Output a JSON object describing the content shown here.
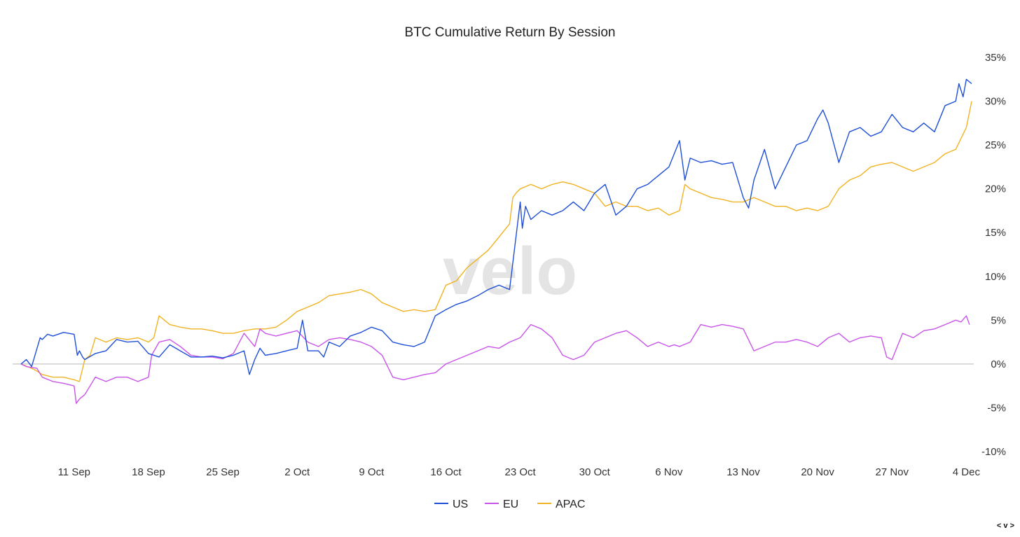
{
  "chart_data": {
    "type": "line",
    "title": "BTC Cumulative Return By Session",
    "xlabel": "",
    "ylabel": "",
    "y_axis_position": "right",
    "ylim": [
      -10,
      35
    ],
    "y_ticks": [
      35,
      30,
      25,
      20,
      15,
      10,
      5,
      0,
      -5,
      -10
    ],
    "y_tick_labels": [
      "35%",
      "30%",
      "25%",
      "20%",
      "15%",
      "10%",
      "5%",
      "0%",
      "-5%",
      "-10%"
    ],
    "x_ticks": [
      0,
      7,
      14,
      21,
      28,
      35,
      42,
      49,
      56,
      63,
      70,
      77,
      84
    ],
    "x_tick_labels": [
      "11 Sep",
      "18 Sep",
      "25 Sep",
      "2 Oct",
      "9 Oct",
      "16 Oct",
      "23 Oct",
      "30 Oct",
      "6 Nov",
      "13 Nov",
      "20 Nov",
      "27 Nov",
      "4 Dec"
    ],
    "xlim": [
      -5,
      84.7
    ],
    "zero_line": true,
    "grid": false,
    "legend_position": "bottom-center",
    "watermark": "velo",
    "series": [
      {
        "name": "US",
        "color": "#1f4fd6",
        "x": [
          -5,
          -4.5,
          -4,
          -3.2,
          -3,
          -2.5,
          -2,
          -1,
          0,
          0.3,
          0.5,
          0.8,
          1,
          2,
          3,
          4,
          5,
          6,
          7,
          8,
          9,
          10,
          11,
          12,
          13,
          14,
          15,
          16,
          16.5,
          17,
          17.5,
          18,
          19,
          20,
          21,
          21.5,
          22,
          23,
          23.5,
          24,
          25,
          26,
          27,
          28,
          29,
          30,
          31,
          32,
          33,
          34,
          35,
          36,
          37,
          38,
          39,
          40,
          41,
          42,
          42.2,
          42.5,
          43,
          44,
          45,
          46,
          47,
          48,
          49,
          50,
          51,
          52,
          53,
          54,
          55,
          56,
          57,
          57.5,
          58,
          59,
          60,
          61,
          62,
          63,
          63.5,
          64,
          65,
          66,
          67,
          68,
          69,
          70,
          70.5,
          71,
          72,
          73,
          74,
          75,
          76,
          77,
          78,
          79,
          80,
          81,
          82,
          83,
          83.3,
          83.7,
          84,
          84.5
        ],
        "values": [
          0,
          0.5,
          -0.3,
          3,
          2.8,
          3.4,
          3.2,
          3.6,
          3.4,
          1,
          1.5,
          0.8,
          0.5,
          1.2,
          1.5,
          2.8,
          2.5,
          2.6,
          1.2,
          0.8,
          2.2,
          1.5,
          0.8,
          0.8,
          0.9,
          0.7,
          1,
          1.5,
          -1.2,
          0.5,
          1.8,
          1,
          1.2,
          1.5,
          1.8,
          5,
          1.5,
          1.5,
          0.8,
          2.5,
          2.0,
          3.2,
          3.6,
          4.2,
          3.8,
          2.5,
          2.2,
          2.0,
          2.5,
          5.5,
          6.2,
          6.8,
          7.2,
          7.8,
          8.5,
          9.0,
          8.5,
          18.5,
          15.5,
          18.0,
          16.5,
          17.5,
          17.0,
          17.5,
          18.5,
          17.5,
          19.5,
          20.5,
          17.0,
          18.0,
          20.0,
          20.5,
          21.5,
          22.5,
          25.5,
          21.0,
          23.5,
          23.0,
          23.2,
          22.8,
          23.0,
          19.0,
          17.8,
          21.0,
          24.5,
          20.0,
          22.5,
          25.0,
          25.5,
          28.0,
          29.0,
          27.5,
          23.0,
          26.5,
          27.0,
          26.0,
          26.5,
          28.5,
          27.0,
          26.5,
          27.5,
          26.5,
          29.5,
          30.0,
          32.0,
          30.5,
          32.5,
          32.0
        ],
        "legend_label": "US"
      },
      {
        "name": "EU",
        "color": "#c855e8",
        "x": [
          -5,
          -4.5,
          -3.5,
          -3,
          -2,
          -1,
          0,
          0.2,
          0.5,
          1,
          1.5,
          2,
          3,
          4,
          5,
          6,
          7,
          7.3,
          8,
          9,
          10,
          11,
          12,
          13,
          14,
          15,
          16,
          17,
          17.5,
          18,
          19,
          20,
          21,
          22,
          23,
          24,
          25,
          26,
          27,
          28,
          29,
          30,
          31,
          32,
          33,
          34,
          35,
          36,
          37,
          38,
          39,
          40,
          41,
          42,
          43,
          44,
          45,
          46,
          47,
          48,
          49,
          50,
          51,
          52,
          53,
          54,
          55,
          56,
          56.5,
          57,
          58,
          59,
          60,
          61,
          62,
          63,
          64,
          65,
          66,
          67,
          68,
          69,
          70,
          71,
          72,
          73,
          74,
          75,
          76,
          76.5,
          77,
          78,
          79,
          80,
          81,
          82,
          83,
          83.5,
          84,
          84.3
        ],
        "values": [
          0,
          -0.3,
          -0.5,
          -1.5,
          -2.0,
          -2.2,
          -2.5,
          -4.5,
          -4.0,
          -3.5,
          -2.5,
          -1.5,
          -2.0,
          -1.5,
          -1.5,
          -2.0,
          -1.5,
          1.0,
          2.5,
          2.8,
          2.0,
          1.0,
          0.8,
          0.8,
          0.6,
          1.2,
          3.5,
          2.0,
          4.0,
          3.5,
          3.2,
          3.5,
          3.8,
          2.5,
          2.0,
          2.8,
          3.0,
          2.8,
          2.5,
          2.0,
          1.0,
          -1.5,
          -1.8,
          -1.5,
          -1.2,
          -1.0,
          0,
          0.5,
          1.0,
          1.5,
          2.0,
          1.8,
          2.5,
          3.0,
          4.5,
          4.0,
          3.0,
          1.0,
          0.5,
          1.0,
          2.5,
          3.0,
          3.5,
          3.8,
          3.0,
          2.0,
          2.5,
          2.0,
          2.2,
          2.0,
          2.5,
          4.5,
          4.2,
          4.5,
          4.3,
          4.0,
          1.5,
          2.0,
          2.5,
          2.5,
          2.8,
          2.5,
          2.0,
          3.0,
          3.5,
          2.5,
          3.0,
          3.2,
          3.0,
          0.8,
          0.5,
          3.5,
          3.0,
          3.8,
          4.0,
          4.5,
          5.0,
          4.8,
          5.5,
          4.5
        ],
        "legend_label": "EU"
      },
      {
        "name": "APAC",
        "color": "#f0b323",
        "x": [
          -5,
          -4,
          -3.5,
          -3,
          -2,
          -1,
          0,
          0.5,
          1,
          1.5,
          2,
          3,
          4,
          5,
          6,
          7,
          7.5,
          8,
          9,
          10,
          11,
          12,
          13,
          14,
          15,
          16,
          17,
          18,
          19,
          20,
          21,
          22,
          23,
          24,
          25,
          26,
          27,
          28,
          29,
          30,
          31,
          32,
          33,
          34,
          35,
          36,
          37,
          38,
          39,
          40,
          41,
          41.3,
          41.6,
          42,
          43,
          44,
          45,
          46,
          47,
          48,
          49,
          50,
          51,
          52,
          53,
          54,
          55,
          56,
          57,
          57.5,
          58,
          59,
          60,
          61,
          62,
          63,
          64,
          65,
          66,
          67,
          68,
          69,
          70,
          71,
          72,
          73,
          74,
          75,
          76,
          77,
          78,
          79,
          80,
          81,
          82,
          83,
          84,
          84.5
        ],
        "values": [
          0,
          -0.5,
          -0.8,
          -1.2,
          -1.5,
          -1.5,
          -1.8,
          -2.0,
          0.5,
          1.0,
          3.0,
          2.5,
          3.0,
          2.8,
          3.0,
          2.5,
          3.0,
          5.5,
          4.5,
          4.2,
          4.0,
          4.0,
          3.8,
          3.5,
          3.5,
          3.8,
          4.0,
          4.0,
          4.2,
          5.0,
          6.0,
          6.5,
          7.0,
          7.8,
          8.0,
          8.2,
          8.5,
          8.0,
          7.0,
          6.5,
          6.0,
          6.2,
          6.0,
          6.2,
          9.0,
          9.5,
          11.0,
          12.0,
          13.0,
          14.5,
          16.0,
          19.0,
          19.5,
          20.0,
          20.5,
          20.0,
          20.5,
          20.8,
          20.5,
          20.0,
          19.5,
          18.0,
          18.5,
          18.0,
          18.0,
          17.5,
          17.8,
          17.0,
          17.5,
          20.5,
          20.0,
          19.5,
          19.0,
          18.8,
          18.5,
          18.5,
          19.0,
          18.5,
          18.0,
          18.0,
          17.5,
          17.8,
          17.5,
          18.0,
          20.0,
          21.0,
          21.5,
          22.5,
          22.8,
          23.0,
          22.5,
          22.0,
          22.5,
          23.0,
          24.0,
          24.5,
          27.0,
          30.0
        ],
        "legend_label": "APAC"
      }
    ]
  },
  "corner_mark": "< v >"
}
